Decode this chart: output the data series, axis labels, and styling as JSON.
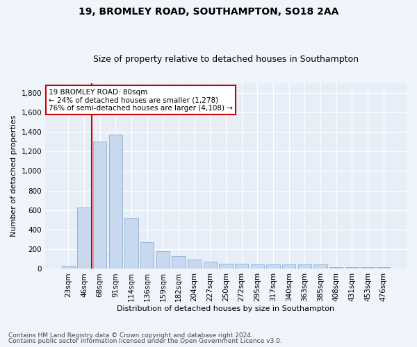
{
  "title1": "19, BROMLEY ROAD, SOUTHAMPTON, SO18 2AA",
  "title2": "Size of property relative to detached houses in Southampton",
  "xlabel": "Distribution of detached houses by size in Southampton",
  "ylabel": "Number of detached properties",
  "categories": [
    "23sqm",
    "46sqm",
    "68sqm",
    "91sqm",
    "114sqm",
    "136sqm",
    "159sqm",
    "182sqm",
    "204sqm",
    "227sqm",
    "250sqm",
    "272sqm",
    "295sqm",
    "317sqm",
    "340sqm",
    "363sqm",
    "385sqm",
    "408sqm",
    "431sqm",
    "453sqm",
    "476sqm"
  ],
  "values": [
    35,
    630,
    1300,
    1370,
    520,
    270,
    180,
    130,
    95,
    75,
    55,
    55,
    48,
    48,
    45,
    45,
    45,
    20,
    20,
    20,
    20
  ],
  "bar_color": "#c8d8ee",
  "bar_edge_color": "#8bafd4",
  "annotation_border_color": "#cc0000",
  "vline_color": "#cc0000",
  "vline_x": 1.5,
  "annotation_text_line1": "19 BROMLEY ROAD: 80sqm",
  "annotation_text_line2": "← 24% of detached houses are smaller (1,278)",
  "annotation_text_line3": "76% of semi-detached houses are larger (4,108) →",
  "ylim": [
    0,
    1900
  ],
  "yticks": [
    0,
    200,
    400,
    600,
    800,
    1000,
    1200,
    1400,
    1600,
    1800
  ],
  "fig_bg_color": "#f0f4fb",
  "plot_bg_color": "#e8eef8",
  "footer_line1": "Contains HM Land Registry data © Crown copyright and database right 2024.",
  "footer_line2": "Contains public sector information licensed under the Open Government Licence v3.0.",
  "title1_fontsize": 10,
  "title2_fontsize": 9,
  "ylabel_fontsize": 8,
  "xlabel_fontsize": 8,
  "tick_fontsize": 7.5,
  "ann_fontsize": 7.5,
  "footer_fontsize": 6.5
}
